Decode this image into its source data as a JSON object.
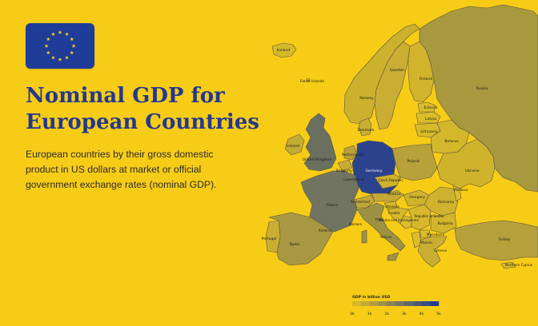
{
  "header": {
    "title": "Nominal GDP for European Countries",
    "subtitle": "European countries by their gross domestic product in US dollars at market or official government exchange rates (nominal GDP)."
  },
  "colors": {
    "background": "#f7cc16",
    "title": "#23388e",
    "flag_blue": "#1f3c98",
    "flag_star": "#f7cc16",
    "land_low": "#d7b82a",
    "land_high": "#253f8e",
    "border": "#5c5640"
  },
  "flag": {
    "icon": "eu-flag-icon",
    "stars": 12
  },
  "map": {
    "labels": {
      "iceland": "Iceland",
      "faroe": "Faroe Islands",
      "norway": "Norway",
      "sweden": "Sweden",
      "finland": "Finland",
      "russia": "Russia",
      "estonia": "Estonia",
      "latvia": "Latvia",
      "lithuania": "Lithuania",
      "denmark": "Denmark",
      "ireland": "Ireland",
      "uk": "United Kingdom",
      "netherlands": "Netherlands",
      "belgium": "Belgium",
      "luxembourg": "Luxembourg",
      "germany": "Germany",
      "poland": "Poland",
      "belarus": "Belarus",
      "ukraine": "Ukraine",
      "czech": "Czech Republic",
      "austria": "Austria",
      "hungary": "Hungary",
      "romania": "Romania",
      "moldova": "Moldova",
      "france": "France",
      "switzerland": "Switzerland",
      "slovenia": "Slovenia",
      "croatia": "Croatia",
      "bosnia": "Bosnia and Herzegovina",
      "serbia": "Republic of Serbia",
      "bulgaria": "Bulgaria",
      "monaco": "Monaco",
      "andorra": "Andorra",
      "italy": "Italy",
      "vatican": "Vatican",
      "macedonia": "Macedonia",
      "albania": "Albania",
      "greece": "Greece",
      "portugal": "Portugal",
      "spain": "Spain",
      "turkey": "Turkey",
      "northern_cyprus": "Northern Cyprus"
    },
    "gdp_billion_usd": {
      "germany": 3700,
      "uk": 2800,
      "france": 2600,
      "italy": 1900,
      "russia": 1600,
      "spain": 1300,
      "turkey": 850,
      "netherlands": 830,
      "switzerland": 680,
      "poland": 550,
      "sweden": 530
    },
    "legend": {
      "title": "GDP in billion USD",
      "ticks": [
        "0k",
        "1k",
        "2k",
        "3k",
        "4k",
        "5k"
      ],
      "min": 0,
      "max": 5000
    }
  }
}
